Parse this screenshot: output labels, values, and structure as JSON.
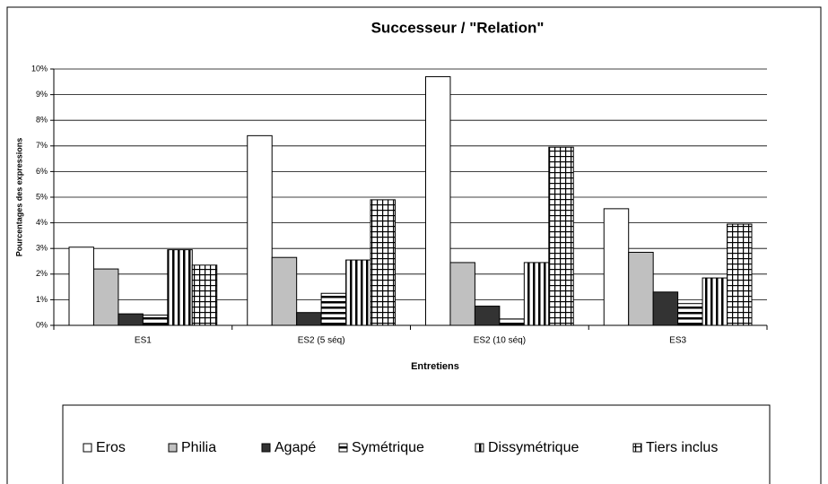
{
  "chart_data": {
    "type": "bar",
    "title": "Successeur / \"Relation\"",
    "x_label": "Entretiens",
    "y_label": "Pourcentages des expressions",
    "categories": [
      "ES1",
      "ES2 (5 séq)",
      "ES2 (10 séq)",
      "ES3"
    ],
    "series": [
      {
        "name": "Eros",
        "color": "#ffffff",
        "values": [
          3.05,
          7.4,
          9.7,
          4.55
        ]
      },
      {
        "name": "Philia",
        "color": "#c0c0c0",
        "values": [
          2.2,
          2.65,
          2.45,
          2.85
        ]
      },
      {
        "name": "Agapé",
        "color": "#333333",
        "values": [
          0.45,
          0.5,
          0.75,
          1.3
        ]
      },
      {
        "name": "Symétrique",
        "color": "#000000",
        "pattern": "horizontal-stripes",
        "values": [
          0.4,
          1.25,
          0.25,
          0.85
        ]
      },
      {
        "name": "Dissymétrique",
        "color": "#000000",
        "pattern": "vertical-stripes",
        "values": [
          2.95,
          2.55,
          2.45,
          1.85
        ]
      },
      {
        "name": "Tiers inclus",
        "color": "#000000",
        "pattern": "grid",
        "values": [
          2.35,
          4.9,
          6.95,
          3.95
        ]
      }
    ],
    "ylim": [
      0,
      10
    ],
    "yticks": [
      {
        "value": 0,
        "label": "0%"
      },
      {
        "value": 1,
        "label": "1%"
      },
      {
        "value": 2,
        "label": "2%"
      },
      {
        "value": 3,
        "label": "3%"
      },
      {
        "value": 4,
        "label": "4%"
      },
      {
        "value": 5,
        "label": "5%"
      },
      {
        "value": 6,
        "label": "6%"
      },
      {
        "value": 7,
        "label": "7%"
      },
      {
        "value": 8,
        "label": "8%"
      },
      {
        "value": 9,
        "label": "9%"
      },
      {
        "value": 10,
        "label": "10%"
      }
    ],
    "grid": true
  }
}
